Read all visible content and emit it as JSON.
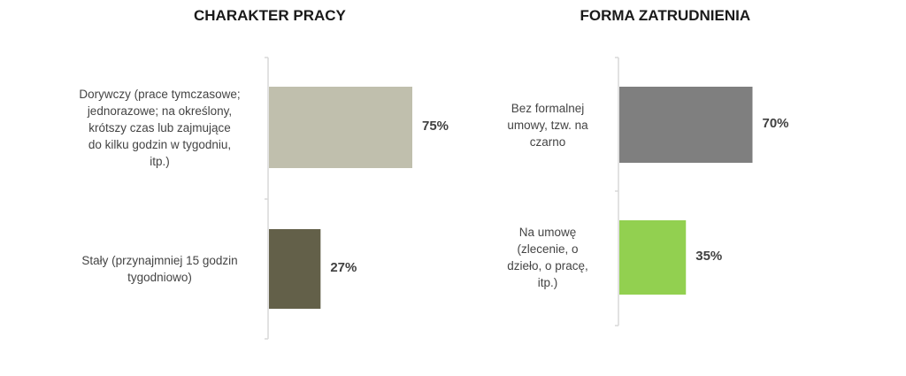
{
  "chart_data": [
    {
      "type": "bar",
      "orientation": "horizontal",
      "title": "CHARAKTER PRACY",
      "categories": [
        "Dorywczy (prace tymczasowe; jednorazowe; na określony, krótszy czas lub zajmujące do kilku godzin w tygodniu, itp.)",
        "Stały (przynajmniej 15 godzin tygodniowo)"
      ],
      "values": [
        75,
        27
      ],
      "value_labels": [
        "75%",
        "27%"
      ],
      "colors": [
        "#c0bfad",
        "#636049"
      ],
      "xlim": [
        0,
        100
      ],
      "grid": false,
      "legend": "none"
    },
    {
      "type": "bar",
      "orientation": "horizontal",
      "title": "FORMA ZATRUDNIENIA",
      "categories": [
        "Bez formalnej umowy, tzw. na czarno",
        "Na umowę (zlecenie, o dzieło, o pracę, itp.)"
      ],
      "values": [
        70,
        35
      ],
      "value_labels": [
        "70%",
        "35%"
      ],
      "colors": [
        "#7f7f7f",
        "#92d050"
      ],
      "xlim": [
        0,
        100
      ],
      "grid": false,
      "legend": "none"
    }
  ]
}
